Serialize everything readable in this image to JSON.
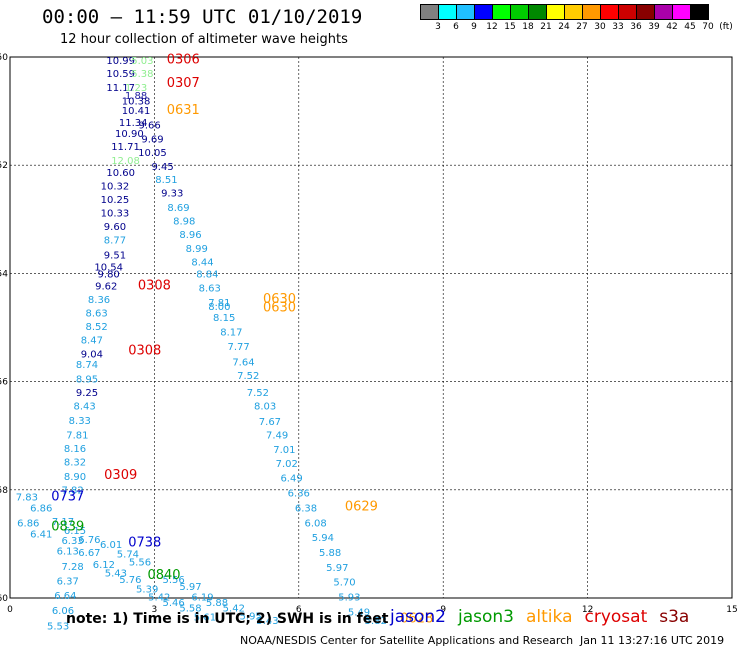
{
  "header": {
    "title": "00:00 – 11:59 UTC 01/10/2019",
    "subtitle": "12 hour collection of altimeter wave heights"
  },
  "color_scale": {
    "colors": [
      "#808080",
      "#00ffff",
      "#20c0ff",
      "#0000ff",
      "#00ff00",
      "#00cc00",
      "#008800",
      "#ffff00",
      "#ffcc00",
      "#ff9900",
      "#ff0000",
      "#cc0000",
      "#880000",
      "#aa00aa",
      "#ff00ff",
      "#000000"
    ],
    "labels": [
      "3",
      "6",
      "9",
      "12",
      "15",
      "18",
      "21",
      "24",
      "27",
      "30",
      "33",
      "36",
      "39",
      "42",
      "45",
      "70",
      "(ft)"
    ]
  },
  "satellites": [
    {
      "name": "jason2",
      "color": "#0000cc"
    },
    {
      "name": "jason3",
      "color": "#009900"
    },
    {
      "name": "altika",
      "color": "#ff9900"
    },
    {
      "name": "cryosat",
      "color": "#dd0000"
    },
    {
      "name": "s3a",
      "color": "#880000"
    }
  ],
  "footer": {
    "note": "note:  1) Time is in UTC;  2) SWH is in feet",
    "credit": "NOAA/NESDIS Center for Satellite Applications and Research",
    "timestamp": "Jan 11 13:27:16 UTC 2019"
  },
  "chart_data": {
    "type": "scatter",
    "title": "00:00 – 11:59 UTC 01/10/2019",
    "subtitle": "12 hour collection of altimeter wave heights",
    "x_ticks": [
      "0",
      "3",
      "6",
      "9",
      "12",
      "15"
    ],
    "y_ticks": [
      "-50",
      "-52",
      "-54",
      "-56",
      "-58",
      "-60"
    ],
    "xlim": [
      0,
      15
    ],
    "ylim": [
      -60,
      -50
    ],
    "grid": true,
    "points": [
      {
        "x": 2.3,
        "y": -50.13,
        "label": "10.99",
        "color": "#00008b"
      },
      {
        "x": 2.75,
        "y": -50.13,
        "label": "5.03",
        "color": "#90ee90"
      },
      {
        "x": 2.3,
        "y": -50.37,
        "label": "10.59",
        "color": "#00008b"
      },
      {
        "x": 2.75,
        "y": -50.37,
        "label": "5.38",
        "color": "#90ee90"
      },
      {
        "x": 2.3,
        "y": -50.63,
        "label": "11.17",
        "color": "#00008b"
      },
      {
        "x": 2.62,
        "y": -50.63,
        "label": "1.23",
        "color": "#90ee90"
      },
      {
        "x": 2.62,
        "y": -50.78,
        "label": "1.88",
        "color": "#2020a0"
      },
      {
        "x": 2.62,
        "y": -50.88,
        "label": "10.38",
        "color": "#00008b"
      },
      {
        "x": 2.62,
        "y": -51.05,
        "label": "10.41",
        "color": "#00008b"
      },
      {
        "x": 2.56,
        "y": -51.28,
        "label": "11.34",
        "color": "#00008b"
      },
      {
        "x": 2.9,
        "y": -51.32,
        "label": "9.66",
        "color": "#00008b"
      },
      {
        "x": 2.48,
        "y": -51.48,
        "label": "10.90",
        "color": "#00008b"
      },
      {
        "x": 2.96,
        "y": -51.58,
        "label": "9.69",
        "color": "#00008b"
      },
      {
        "x": 2.4,
        "y": -51.72,
        "label": "11.71",
        "color": "#00008b"
      },
      {
        "x": 2.96,
        "y": -51.83,
        "label": "10.05",
        "color": "#00008b"
      },
      {
        "x": 2.4,
        "y": -51.98,
        "label": "12.08",
        "color": "#90ee90"
      },
      {
        "x": 3.17,
        "y": -52.09,
        "label": "9.45",
        "color": "#00008b"
      },
      {
        "x": 2.3,
        "y": -52.2,
        "label": "10.60",
        "color": "#00008b"
      },
      {
        "x": 3.25,
        "y": -52.33,
        "label": "8.51",
        "color": "#20a0e0"
      },
      {
        "x": 2.18,
        "y": -52.45,
        "label": "10.32",
        "color": "#00008b"
      },
      {
        "x": 3.37,
        "y": -52.58,
        "label": "9.33",
        "color": "#00008b"
      },
      {
        "x": 2.18,
        "y": -52.7,
        "label": "10.25",
        "color": "#00008b"
      },
      {
        "x": 3.5,
        "y": -52.85,
        "label": "8.69",
        "color": "#20a0e0"
      },
      {
        "x": 2.18,
        "y": -52.95,
        "label": "10.33",
        "color": "#00008b"
      },
      {
        "x": 3.62,
        "y": -53.1,
        "label": "8.98",
        "color": "#20a0e0"
      },
      {
        "x": 2.18,
        "y": -53.2,
        "label": "9.60",
        "color": "#00008b"
      },
      {
        "x": 3.75,
        "y": -53.35,
        "label": "8.96",
        "color": "#20a0e0"
      },
      {
        "x": 2.18,
        "y": -53.45,
        "label": "8.77",
        "color": "#20a0e0"
      },
      {
        "x": 3.88,
        "y": -53.6,
        "label": "8.99",
        "color": "#20a0e0"
      },
      {
        "x": 2.18,
        "y": -53.72,
        "label": "9.51",
        "color": "#00008b"
      },
      {
        "x": 4.0,
        "y": -53.85,
        "label": "8.44",
        "color": "#20a0e0"
      },
      {
        "x": 2.05,
        "y": -53.95,
        "label": "10.54",
        "color": "#00008b"
      },
      {
        "x": 4.1,
        "y": -54.08,
        "label": "8.84",
        "color": "#20a0e0"
      },
      {
        "x": 2.05,
        "y": -54.08,
        "label": "9.80",
        "color": "#00008b"
      },
      {
        "x": 4.15,
        "y": -54.33,
        "label": "8.63",
        "color": "#20a0e0"
      },
      {
        "x": 2.0,
        "y": -54.3,
        "label": "9.62",
        "color": "#00008b"
      },
      {
        "x": 1.85,
        "y": -54.55,
        "label": "8.36",
        "color": "#20a0e0"
      },
      {
        "x": 4.35,
        "y": -54.6,
        "label": "7.81",
        "color": "#20a0e0"
      },
      {
        "x": 4.35,
        "y": -54.68,
        "label": "8.00",
        "color": "#20a0e0"
      },
      {
        "x": 1.8,
        "y": -54.8,
        "label": "8.63",
        "color": "#20a0e0"
      },
      {
        "x": 4.45,
        "y": -54.88,
        "label": "8.15",
        "color": "#20a0e0"
      },
      {
        "x": 1.8,
        "y": -55.05,
        "label": "8.52",
        "color": "#20a0e0"
      },
      {
        "x": 4.6,
        "y": -55.15,
        "label": "8.17",
        "color": "#20a0e0"
      },
      {
        "x": 1.7,
        "y": -55.3,
        "label": "8.47",
        "color": "#20a0e0"
      },
      {
        "x": 4.75,
        "y": -55.42,
        "label": "7.77",
        "color": "#20a0e0"
      },
      {
        "x": 1.7,
        "y": -55.55,
        "label": "9.04",
        "color": "#00008b"
      },
      {
        "x": 4.85,
        "y": -55.7,
        "label": "7.64",
        "color": "#20a0e0"
      },
      {
        "x": 1.6,
        "y": -55.75,
        "label": "8.74",
        "color": "#20a0e0"
      },
      {
        "x": 4.95,
        "y": -55.95,
        "label": "7.52",
        "color": "#20a0e0"
      },
      {
        "x": 1.6,
        "y": -56.02,
        "label": "8.95",
        "color": "#20a0e0"
      },
      {
        "x": 5.15,
        "y": -56.27,
        "label": "7.52",
        "color": "#20a0e0"
      },
      {
        "x": 1.6,
        "y": -56.27,
        "label": "9.25",
        "color": "#00008b"
      },
      {
        "x": 5.3,
        "y": -56.52,
        "label": "8.03",
        "color": "#20a0e0"
      },
      {
        "x": 1.55,
        "y": -56.52,
        "label": "8.43",
        "color": "#20a0e0"
      },
      {
        "x": 5.4,
        "y": -56.8,
        "label": "7.67",
        "color": "#20a0e0"
      },
      {
        "x": 1.45,
        "y": -56.78,
        "label": "8.33",
        "color": "#20a0e0"
      },
      {
        "x": 5.55,
        "y": -57.05,
        "label": "7.49",
        "color": "#20a0e0"
      },
      {
        "x": 1.4,
        "y": -57.05,
        "label": "7.81",
        "color": "#20a0e0"
      },
      {
        "x": 5.7,
        "y": -57.32,
        "label": "7.01",
        "color": "#20a0e0"
      },
      {
        "x": 1.35,
        "y": -57.3,
        "label": "8.16",
        "color": "#20a0e0"
      },
      {
        "x": 5.75,
        "y": -57.58,
        "label": "7.02",
        "color": "#20a0e0"
      },
      {
        "x": 1.35,
        "y": -57.55,
        "label": "8.32",
        "color": "#20a0e0"
      },
      {
        "x": 5.85,
        "y": -57.85,
        "label": "6.49",
        "color": "#20a0e0"
      },
      {
        "x": 1.35,
        "y": -57.82,
        "label": "8.90",
        "color": "#20a0e0"
      },
      {
        "x": 6.0,
        "y": -58.12,
        "label": "6.36",
        "color": "#20a0e0"
      },
      {
        "x": 1.3,
        "y": -58.07,
        "label": "7.82",
        "color": "#20a0e0"
      },
      {
        "x": 0.35,
        "y": -58.2,
        "label": "7.83",
        "color": "#20a0e0"
      },
      {
        "x": 6.15,
        "y": -58.4,
        "label": "6.38",
        "color": "#20a0e0"
      },
      {
        "x": 0.65,
        "y": -58.4,
        "label": "6.86",
        "color": "#20a0e0"
      },
      {
        "x": 6.35,
        "y": -58.68,
        "label": "6.08",
        "color": "#20a0e0"
      },
      {
        "x": 0.38,
        "y": -58.68,
        "label": "6.86",
        "color": "#20a0e0"
      },
      {
        "x": 6.5,
        "y": -58.95,
        "label": "5.94",
        "color": "#20a0e0"
      },
      {
        "x": 0.65,
        "y": -58.88,
        "label": "6.41",
        "color": "#20a0e0"
      },
      {
        "x": 1.1,
        "y": -58.65,
        "label": "7.17",
        "color": "#20a0e0"
      },
      {
        "x": 1.35,
        "y": -58.82,
        "label": "6.15",
        "color": "#20a0e0"
      },
      {
        "x": 1.3,
        "y": -59.0,
        "label": "6.33",
        "color": "#20a0e0"
      },
      {
        "x": 1.65,
        "y": -58.98,
        "label": "6.76",
        "color": "#20a0e0"
      },
      {
        "x": 2.1,
        "y": -59.08,
        "label": "6.01",
        "color": "#20a0e0"
      },
      {
        "x": 6.65,
        "y": -59.22,
        "label": "5.88",
        "color": "#20a0e0"
      },
      {
        "x": 1.2,
        "y": -59.2,
        "label": "6.13",
        "color": "#20a0e0"
      },
      {
        "x": 1.65,
        "y": -59.22,
        "label": "6.67",
        "color": "#20a0e0"
      },
      {
        "x": 2.45,
        "y": -59.25,
        "label": "5.74",
        "color": "#20a0e0"
      },
      {
        "x": 2.7,
        "y": -59.4,
        "label": "5.56",
        "color": "#20a0e0"
      },
      {
        "x": 6.8,
        "y": -59.5,
        "label": "5.97",
        "color": "#20a0e0"
      },
      {
        "x": 1.3,
        "y": -59.48,
        "label": "7.28",
        "color": "#20a0e0"
      },
      {
        "x": 1.95,
        "y": -59.45,
        "label": "6.12",
        "color": "#20a0e0"
      },
      {
        "x": 2.2,
        "y": -59.6,
        "label": "5.43",
        "color": "#20a0e0"
      },
      {
        "x": 2.5,
        "y": -59.72,
        "label": "5.76",
        "color": "#20a0e0"
      },
      {
        "x": 3.4,
        "y": -59.72,
        "label": "5.56",
        "color": "#20a0e0"
      },
      {
        "x": 6.95,
        "y": -59.77,
        "label": "5.70",
        "color": "#20a0e0"
      },
      {
        "x": 1.2,
        "y": -59.75,
        "label": "6.37",
        "color": "#20a0e0"
      },
      {
        "x": 2.85,
        "y": -59.9,
        "label": "5.39",
        "color": "#20a0e0"
      },
      {
        "x": 3.75,
        "y": -59.85,
        "label": "5.97",
        "color": "#20a0e0"
      },
      {
        "x": 3.1,
        "y": -60.05,
        "label": "5.42",
        "color": "#20a0e0"
      },
      {
        "x": 4.0,
        "y": -60.05,
        "label": "6.19",
        "color": "#20a0e0"
      },
      {
        "x": 7.05,
        "y": -60.05,
        "label": "5.93",
        "color": "#20a0e0"
      },
      {
        "x": 1.15,
        "y": -60.02,
        "label": "6.64",
        "color": "#20a0e0"
      },
      {
        "x": 3.4,
        "y": -60.15,
        "label": "5.46",
        "color": "#20a0e0"
      },
      {
        "x": 4.3,
        "y": -60.15,
        "label": "5.88",
        "color": "#20a0e0"
      },
      {
        "x": 3.75,
        "y": -60.25,
        "label": "5.58",
        "color": "#20a0e0"
      },
      {
        "x": 4.65,
        "y": -60.25,
        "label": "5.42",
        "color": "#20a0e0"
      },
      {
        "x": 7.25,
        "y": -60.32,
        "label": "5.49",
        "color": "#20a0e0"
      },
      {
        "x": 1.1,
        "y": -60.3,
        "label": "6.06",
        "color": "#20a0e0"
      },
      {
        "x": 4.05,
        "y": -60.42,
        "label": "5.61",
        "color": "#20a0e0"
      },
      {
        "x": 5.0,
        "y": -60.4,
        "label": "5.95",
        "color": "#20a0e0"
      },
      {
        "x": 5.35,
        "y": -60.48,
        "label": "5.43",
        "color": "#20a0e0"
      },
      {
        "x": 7.6,
        "y": -60.48,
        "label": "5.82",
        "color": "#20a0e0"
      },
      {
        "x": 1.0,
        "y": -60.58,
        "label": "5.53",
        "color": "#20a0e0"
      }
    ],
    "time_labels": [
      {
        "x": 3.6,
        "y": -50.12,
        "label": "0306",
        "color": "#dd0000"
      },
      {
        "x": 3.6,
        "y": -50.55,
        "label": "0307",
        "color": "#dd0000"
      },
      {
        "x": 3.6,
        "y": -51.05,
        "label": "0631",
        "color": "#ff9900"
      },
      {
        "x": 3.0,
        "y": -54.3,
        "label": "0308",
        "color": "#dd0000"
      },
      {
        "x": 5.6,
        "y": -54.55,
        "label": "0630",
        "color": "#ff9900"
      },
      {
        "x": 5.6,
        "y": -54.7,
        "label": "0630",
        "color": "#ff9900"
      },
      {
        "x": 2.8,
        "y": -55.5,
        "label": "0308",
        "color": "#dd0000"
      },
      {
        "x": 2.3,
        "y": -57.8,
        "label": "0309",
        "color": "#dd0000"
      },
      {
        "x": 1.2,
        "y": -58.2,
        "label": "0737",
        "color": "#0000cc"
      },
      {
        "x": 1.2,
        "y": -58.75,
        "label": "0839",
        "color": "#009900"
      },
      {
        "x": 2.8,
        "y": -59.05,
        "label": "0738",
        "color": "#0000cc"
      },
      {
        "x": 3.2,
        "y": -59.65,
        "label": "0840",
        "color": "#009900"
      },
      {
        "x": 7.3,
        "y": -58.38,
        "label": "0629",
        "color": "#ff9900"
      },
      {
        "x": 8.45,
        "y": -60.45,
        "label": "0628",
        "color": "#ff9900"
      }
    ]
  }
}
